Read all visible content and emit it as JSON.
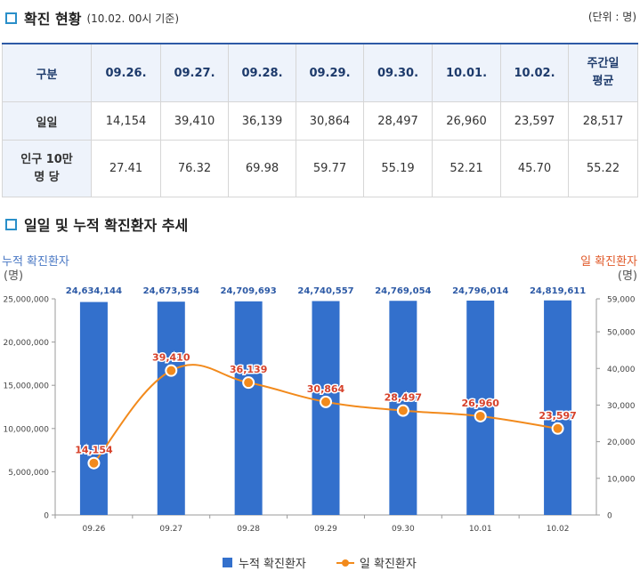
{
  "section1": {
    "title": "확진 현황",
    "subtitle": "(10.02. 00시 기준)",
    "unit": "(단위 : 명)"
  },
  "table": {
    "headers": [
      "구분",
      "09.26.",
      "09.27.",
      "09.28.",
      "09.29.",
      "09.30.",
      "10.01.",
      "10.02.",
      "주간일 평균"
    ],
    "header_last_lines": [
      "주간일",
      "평균"
    ],
    "rows": [
      {
        "label": "일일",
        "values": [
          "14,154",
          "39,410",
          "36,139",
          "30,864",
          "28,497",
          "26,960",
          "23,597",
          "28,517"
        ]
      },
      {
        "label_lines": [
          "인구 10만",
          "명 당"
        ],
        "values": [
          "27.41",
          "76.32",
          "69.98",
          "59.77",
          "55.19",
          "52.21",
          "45.70",
          "55.22"
        ]
      }
    ]
  },
  "section2": {
    "title": "일일 및 누적 확진환자 추세"
  },
  "colors": {
    "bar": "#3370cc",
    "line": "#f28a1c",
    "left_axis_title": "#4a78c4",
    "right_axis_title": "#e05a2a",
    "point_label": "#d6412a",
    "bar_label": "#2d5aa6"
  },
  "chart_data": {
    "type": "bar+line",
    "categories": [
      "09.26",
      "09.27",
      "09.28",
      "09.29",
      "09.30",
      "10.01",
      "10.02"
    ],
    "series": [
      {
        "name": "누적 확진환자",
        "type": "bar",
        "axis": "left",
        "values": [
          24634144,
          24673554,
          24709693,
          24740557,
          24769054,
          24796014,
          24819611
        ],
        "labels": [
          "24,634,144",
          "24,673,554",
          "24,709,693",
          "24,740,557",
          "24,769,054",
          "24,796,014",
          "24,819,611"
        ]
      },
      {
        "name": "일 확진환자",
        "type": "line",
        "axis": "right",
        "values": [
          14154,
          39410,
          36139,
          30864,
          28497,
          26960,
          23597
        ],
        "labels": [
          "14,154",
          "39,410",
          "36,139",
          "30,864",
          "28,497",
          "26,960",
          "23,597"
        ]
      }
    ],
    "left_axis": {
      "title": "누적 확진환자",
      "unit": "(명)",
      "ylim": [
        0,
        25000000
      ],
      "ticks": [
        0,
        5000000,
        10000000,
        15000000,
        20000000,
        25000000
      ],
      "tick_labels": [
        "0",
        "5,000,000",
        "10,000,000",
        "15,000,000",
        "20,000,000",
        "25,000,000"
      ]
    },
    "right_axis": {
      "title": "일 확진환자",
      "unit": "(명)",
      "ylim": [
        0,
        59000
      ],
      "ticks": [
        0,
        10000,
        20000,
        30000,
        40000,
        50000,
        59000
      ],
      "tick_labels": [
        "0",
        "10,000",
        "20,000",
        "30,000",
        "40,000",
        "50,000",
        "59,000"
      ]
    },
    "legend": [
      "누적 확진환자",
      "일 확진환자"
    ],
    "legend_position": "bottom"
  }
}
